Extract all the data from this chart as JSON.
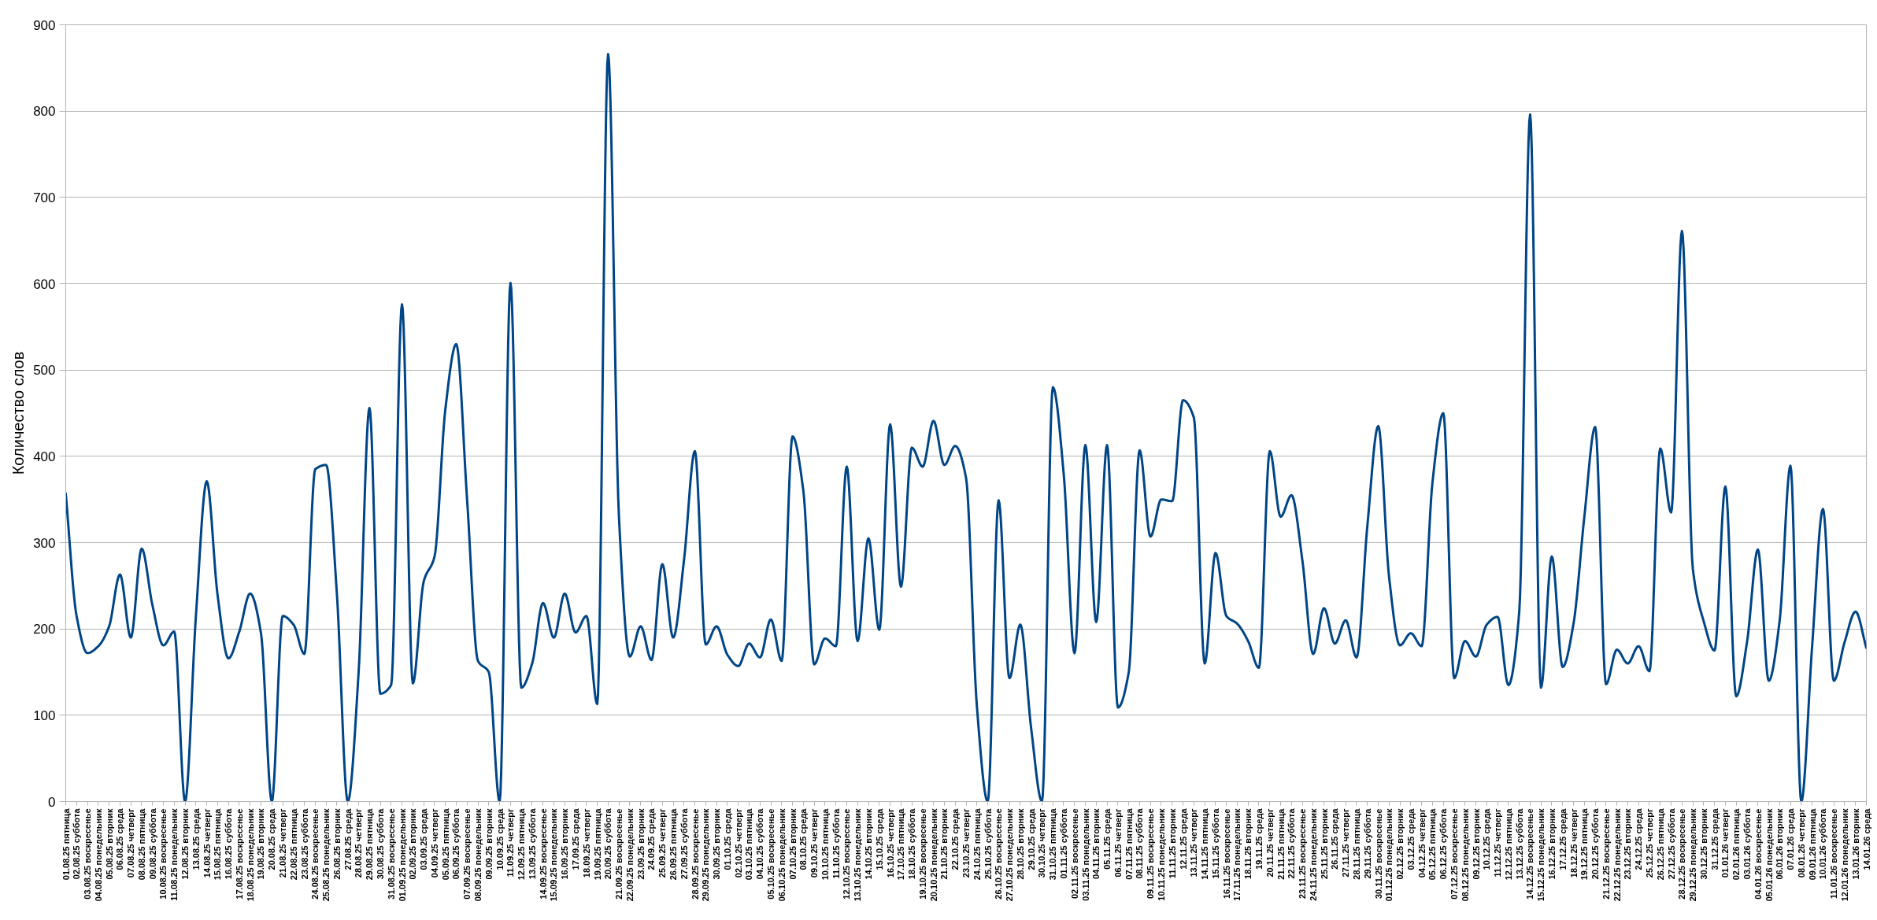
{
  "chart_data": {
    "type": "line",
    "ylabel": "Количество слов",
    "categories": [
      "01.08.25 пятница",
      "02.08.25 суббота",
      "03.08.25 воскресенье",
      "04.08.25 понедельник",
      "05.08.25 вторник",
      "06.08.25 среда",
      "07.08.25 четверг",
      "08.08.25 пятница",
      "09.08.25 суббота",
      "10.08.25 воскресенье",
      "11.08.25 понедельник",
      "12.08.25 вторник",
      "13.08.25 среда",
      "14.08.25 четверг",
      "15.08.25 пятница",
      "16.08.25 суббота",
      "17.08.25 воскресенье",
      "18.08.25 понедельник",
      "19.08.25 вторник",
      "20.08.25 среда",
      "21.08.25 четверг",
      "22.08.25 пятница",
      "23.08.25 суббота",
      "24.08.25 воскресенье",
      "25.08.25 понедельник",
      "26.08.25 вторник",
      "27.08.25 среда",
      "28.08.25 четверг",
      "29.08.25 пятница",
      "30.08.25 суббота",
      "31.08.25 воскресенье",
      "01.09.25 понедельник",
      "02.09.25 вторник",
      "03.09.25 среда",
      "04.09.25 четверг",
      "05.09.25 пятница",
      "06.09.25 суббота",
      "07.09.25 воскресенье",
      "08.09.25 понедельник",
      "09.09.25 вторник",
      "10.09.25 среда",
      "11.09.25 четверг",
      "12.09.25 пятница",
      "13.09.25 суббота",
      "14.09.25 воскресенье",
      "15.09.25 понедельник",
      "16.09.25 вторник",
      "17.09.25 среда",
      "18.09.25 четверг",
      "19.09.25 пятница",
      "20.09.25 суббота",
      "21.09.25 воскресенье",
      "22.09.25 понедельник",
      "23.09.25 вторник",
      "24.09.25 среда",
      "25.09.25 четверг",
      "26.09.25 пятница",
      "27.09.25 суббота",
      "28.09.25 воскресенье",
      "29.09.25 понедельник",
      "30.09.25 вторник",
      "01.10.25 среда",
      "02.10.25 четверг",
      "03.10.25 пятница",
      "04.10.25 суббота",
      "05.10.25 воскресенье",
      "06.10.25 понедельник",
      "07.10.25 вторник",
      "08.10.25 среда",
      "09.10.25 четверг",
      "10.10.25 пятница",
      "11.10.25 суббота",
      "12.10.25 воскресенье",
      "13.10.25 понедельник",
      "14.10.25 вторник",
      "15.10.25 среда",
      "16.10.25 четверг",
      "17.10.25 пятница",
      "18.10.25 суббота",
      "19.10.25 воскресенье",
      "20.10.25 понедельник",
      "21.10.25 вторник",
      "22.10.25 среда",
      "23.10.25 четверг",
      "24.10.25 пятница",
      "25.10.25 суббота",
      "26.10.25 воскресенье",
      "27.10.25 понедельник",
      "28.10.25 вторник",
      "29.10.25 среда",
      "30.10.25 четверг",
      "31.10.25 пятница",
      "01.11.25 суббота",
      "02.11.25 воскресенье",
      "03.11.25 понедельник",
      "04.11.25 вторник",
      "05.11.25 среда",
      "06.11.25 четверг",
      "07.11.25 пятница",
      "08.11.25 суббота",
      "09.11.25 воскресенье",
      "10.11.25 понедельник",
      "11.11.25 вторник",
      "12.11.25 среда",
      "13.11.25 четверг",
      "14.11.25 пятница",
      "15.11.25 суббота",
      "16.11.25 воскресенье",
      "17.11.25 понедельник",
      "18.11.25 вторник",
      "19.11.25 среда",
      "20.11.25 четверг",
      "21.11.25 пятница",
      "22.11.25 суббота",
      "23.11.25 воскресенье",
      "24.11.25 понедельник",
      "25.11.25 вторник",
      "26.11.25 среда",
      "27.11.25 четверг",
      "28.11.25 пятница",
      "29.11.25 суббота",
      "30.11.25 воскресенье",
      "01.12.25 понедельник",
      "02.12.25 вторник",
      "03.12.25 среда",
      "04.12.25 четверг",
      "05.12.25 пятница",
      "06.12.25 суббота",
      "07.12.25 воскресенье",
      "08.12.25 понедельник",
      "09.12.25 вторник",
      "10.12.25 среда",
      "11.12.25 четверг",
      "12.12.25 пятница",
      "13.12.25 суббота",
      "14.12.25 воскресенье",
      "15.12.25 понедельник",
      "16.12.25 вторник",
      "17.12.25 среда",
      "18.12.25 четверг",
      "19.12.25 пятница",
      "20.12.25 суббота",
      "21.12.25 воскресенье",
      "22.12.25 понедельник",
      "23.12.25 вторник",
      "24.12.25 среда",
      "25.12.25 четверг",
      "26.12.25 пятница",
      "27.12.25 суббота",
      "28.12.25 воскресенье",
      "29.12.25 понедельник",
      "30.12.25 вторник",
      "31.12.25 среда",
      "01.01.26 четверг",
      "02.01.26 пятница",
      "03.01.26 суббота",
      "04.01.26 воскресенье",
      "05.01.26 понедельник",
      "06.01.26 вторник",
      "07.01.26 среда",
      "08.01.26 четверг",
      "09.01.26 пятница",
      "10.01.26 суббота",
      "11.01.26 воскресенье",
      "12.01.26 понедельник",
      "13.01.26 вторник",
      "14.01.26 среда"
    ],
    "color": "#004586",
    "values": [
      357,
      215,
      172,
      180,
      203,
      263,
      190,
      293,
      227,
      181,
      197,
      0,
      215,
      371,
      239,
      166,
      197,
      241,
      195,
      0,
      215,
      205,
      171,
      385,
      390,
      240,
      0,
      150,
      456,
      125,
      135,
      576,
      137,
      255,
      284,
      455,
      530,
      350,
      163,
      150,
      0,
      601,
      132,
      160,
      230,
      190,
      241,
      196,
      215,
      113,
      866,
      330,
      168,
      203,
      164,
      275,
      190,
      280,
      406,
      182,
      203,
      170,
      157,
      183,
      167,
      211,
      163,
      423,
      360,
      159,
      189,
      180,
      388,
      186,
      305,
      199,
      437,
      249,
      410,
      388,
      441,
      390,
      412,
      375,
      110,
      0,
      349,
      143,
      205,
      85,
      0,
      480,
      380,
      172,
      413,
      208,
      413,
      109,
      150,
      407,
      307,
      350,
      348,
      465,
      445,
      160,
      288,
      215,
      206,
      186,
      155,
      406,
      330,
      355,
      280,
      171,
      224,
      183,
      210,
      167,
      320,
      435,
      260,
      181,
      195,
      180,
      370,
      450,
      143,
      186,
      168,
      205,
      214,
      135,
      220,
      796,
      132,
      284,
      156,
      206,
      330,
      434,
      136,
      176,
      160,
      180,
      151,
      409,
      335,
      661,
      270,
      209,
      175,
      365,
      122,
      185,
      292,
      140,
      209,
      389,
      0,
      180,
      339,
      140,
      185,
      220,
      178
    ],
    "ylim": [
      0,
      900
    ],
    "yticks": [
      0,
      100,
      200,
      300,
      400,
      500,
      600,
      700,
      800,
      900
    ],
    "grid": "y",
    "line_style": "solid"
  }
}
